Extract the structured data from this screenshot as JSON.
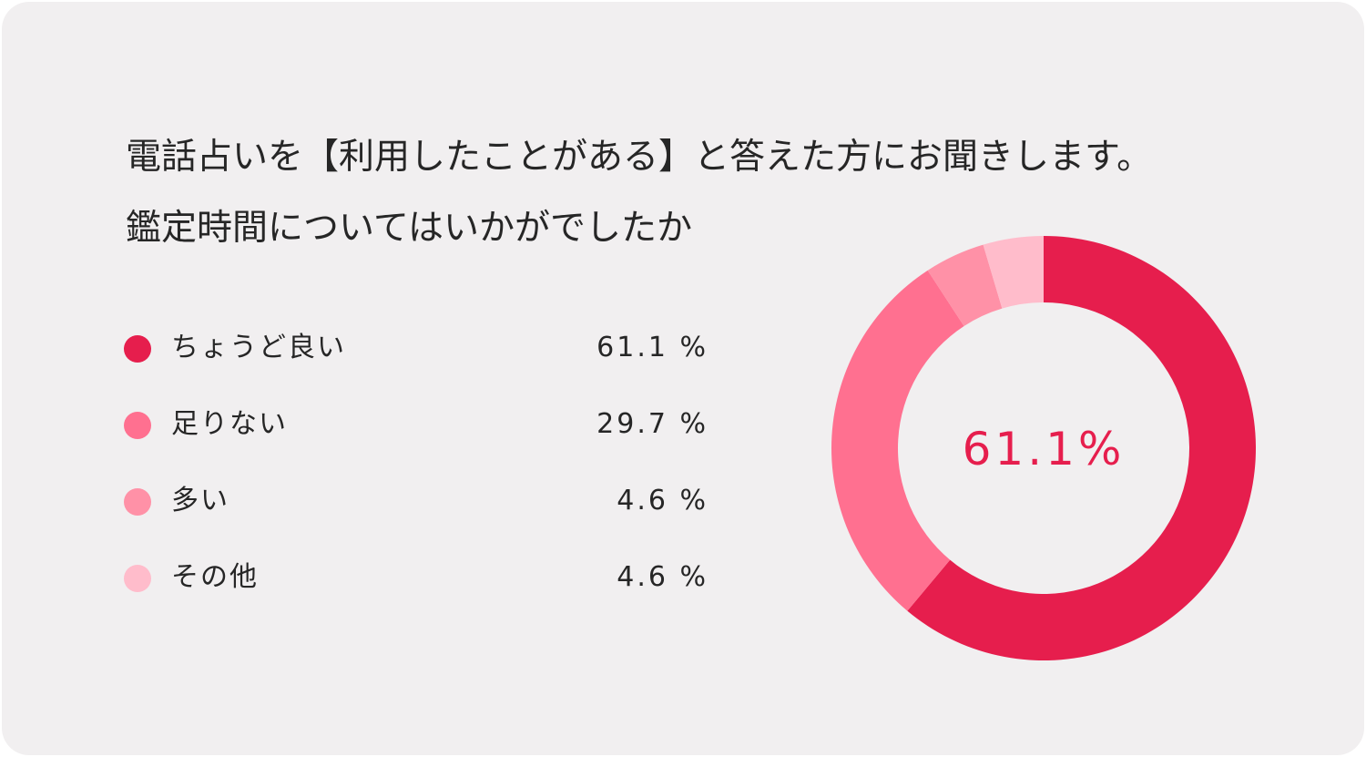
{
  "title": {
    "line1": "電話占いを【利用したことがある】と答えた方にお聞きします。",
    "line2": "鑑定時間についてはいかがでしたか"
  },
  "legend": [
    {
      "label": "ちょうど良い",
      "value": "61.1 %",
      "color": "#e61e4d"
    },
    {
      "label": "足りない",
      "value": "29.7 %",
      "color": "#ff7090"
    },
    {
      "label": "多い",
      "value": "4.6 %",
      "color": "#ff91a7"
    },
    {
      "label": "その他",
      "value": "4.6 %",
      "color": "#ffbccb"
    }
  ],
  "chart_data": {
    "type": "pie",
    "donut": true,
    "title": "電話占いを【利用したことがある】と答えた方にお聞きします。 鑑定時間についてはいかがでしたか",
    "categories": [
      "ちょうど良い",
      "足りない",
      "多い",
      "その他"
    ],
    "values": [
      61.1,
      29.7,
      4.6,
      4.6
    ],
    "unit": "%",
    "colors": [
      "#e61e4d",
      "#ff7090",
      "#ff91a7",
      "#ffbccb"
    ],
    "center_label": "61.1%",
    "legend": "left"
  }
}
